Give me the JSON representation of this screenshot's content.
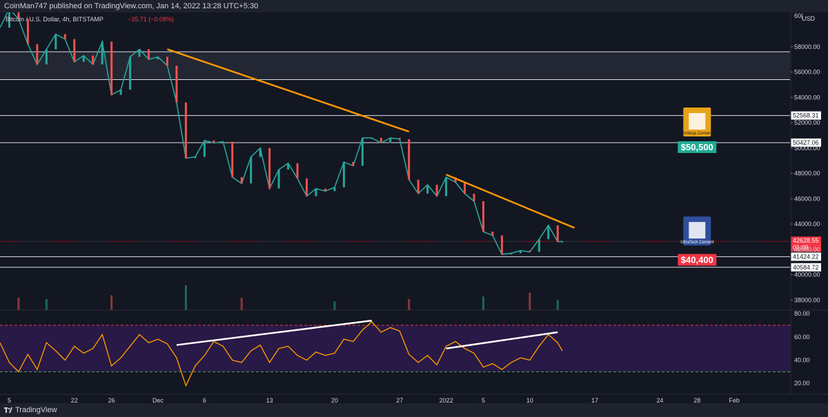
{
  "publisher_line": "CoinMan747 published on TradingView.com, Jan 14, 2022 13:28 UTC+5:30",
  "branding": "TradingView",
  "chart_data": {
    "type": "line",
    "symbol_legend": {
      "name": "Bitcoin / U.S. Dollar, 4h, BITSTAMP",
      "change": "−35.71 (−0.08%)"
    },
    "price_axis": {
      "unit": "USD",
      "ylim": [
        37200,
        60600
      ],
      "ticks": [
        38000,
        40000,
        42000,
        44000,
        46000,
        48000,
        50000,
        52000,
        54000,
        56000,
        58000
      ],
      "tick_labels": [
        "38000.00",
        "40000.00",
        "42000.00",
        "44000.00",
        "46000.00",
        "48000.00",
        "50000.00",
        "52000.00",
        "54000.00",
        "56000.00",
        "58000.00"
      ],
      "top_label": "60("
    },
    "x_axis": {
      "ticks": [
        "2021-11-15",
        "2021-11-22",
        "2021-11-26",
        "2021-12-01",
        "2021-12-06",
        "2021-12-13",
        "2021-12-20",
        "2021-12-27",
        "2022-01-01",
        "2022-01-05",
        "2022-01-10",
        "2022-01-17",
        "2022-01-24",
        "2022-01-28",
        "2022-02-01"
      ],
      "tick_labels": [
        "5",
        "22",
        "26",
        "Dec",
        "6",
        "13",
        "20",
        "27",
        "2022",
        "5",
        "10",
        "17",
        "24",
        "28",
        "Feb"
      ],
      "xlim": [
        "2021-11-14",
        "2022-02-07"
      ]
    },
    "price_series": [
      {
        "x": "2021-11-14",
        "y": 59500
      },
      {
        "x": "2021-11-15",
        "y": 61000
      },
      {
        "x": "2021-11-16",
        "y": 60200
      },
      {
        "x": "2021-11-17",
        "y": 58200
      },
      {
        "x": "2021-11-18",
        "y": 56600
      },
      {
        "x": "2021-11-19",
        "y": 57800
      },
      {
        "x": "2021-11-20",
        "y": 59000
      },
      {
        "x": "2021-11-21",
        "y": 58600
      },
      {
        "x": "2021-11-22",
        "y": 56800
      },
      {
        "x": "2021-11-23",
        "y": 57300
      },
      {
        "x": "2021-11-24",
        "y": 56600
      },
      {
        "x": "2021-11-25",
        "y": 58400
      },
      {
        "x": "2021-11-26",
        "y": 54200
      },
      {
        "x": "2021-11-27",
        "y": 54600
      },
      {
        "x": "2021-11-28",
        "y": 57200
      },
      {
        "x": "2021-11-29",
        "y": 57800
      },
      {
        "x": "2021-11-30",
        "y": 57000
      },
      {
        "x": "2021-12-01",
        "y": 57200
      },
      {
        "x": "2021-12-02",
        "y": 56500
      },
      {
        "x": "2021-12-03",
        "y": 53600
      },
      {
        "x": "2021-12-04",
        "y": 49200
      },
      {
        "x": "2021-12-05",
        "y": 49300
      },
      {
        "x": "2021-12-06",
        "y": 50600
      },
      {
        "x": "2021-12-07",
        "y": 50400
      },
      {
        "x": "2021-12-08",
        "y": 50500
      },
      {
        "x": "2021-12-09",
        "y": 47700
      },
      {
        "x": "2021-12-10",
        "y": 47200
      },
      {
        "x": "2021-12-11",
        "y": 49300
      },
      {
        "x": "2021-12-12",
        "y": 50000
      },
      {
        "x": "2021-12-13",
        "y": 46800
      },
      {
        "x": "2021-12-14",
        "y": 48300
      },
      {
        "x": "2021-12-15",
        "y": 48800
      },
      {
        "x": "2021-12-16",
        "y": 47600
      },
      {
        "x": "2021-12-17",
        "y": 46200
      },
      {
        "x": "2021-12-18",
        "y": 46800
      },
      {
        "x": "2021-12-19",
        "y": 46600
      },
      {
        "x": "2021-12-20",
        "y": 46900
      },
      {
        "x": "2021-12-21",
        "y": 48900
      },
      {
        "x": "2021-12-22",
        "y": 48600
      },
      {
        "x": "2021-12-23",
        "y": 50800
      },
      {
        "x": "2021-12-24",
        "y": 50800
      },
      {
        "x": "2021-12-25",
        "y": 50400
      },
      {
        "x": "2021-12-26",
        "y": 50800
      },
      {
        "x": "2021-12-27",
        "y": 50700
      },
      {
        "x": "2021-12-28",
        "y": 47500
      },
      {
        "x": "2021-12-29",
        "y": 46400
      },
      {
        "x": "2021-12-30",
        "y": 47100
      },
      {
        "x": "2021-12-31",
        "y": 46200
      },
      {
        "x": "2022-01-01",
        "y": 47700
      },
      {
        "x": "2022-01-02",
        "y": 47300
      },
      {
        "x": "2022-01-03",
        "y": 46400
      },
      {
        "x": "2022-01-04",
        "y": 45800
      },
      {
        "x": "2022-01-05",
        "y": 43400
      },
      {
        "x": "2022-01-06",
        "y": 43100
      },
      {
        "x": "2022-01-07",
        "y": 41600
      },
      {
        "x": "2022-01-08",
        "y": 41700
      },
      {
        "x": "2022-01-09",
        "y": 41900
      },
      {
        "x": "2022-01-10",
        "y": 41800
      },
      {
        "x": "2022-01-11",
        "y": 42800
      },
      {
        "x": "2022-01-12",
        "y": 43900
      },
      {
        "x": "2022-01-13",
        "y": 42600
      },
      {
        "x": "2022-01-13.5",
        "y": 42629
      }
    ],
    "volume_series": [
      {
        "x": "2021-11-16",
        "v": 0.5
      },
      {
        "x": "2021-11-19",
        "v": 0.45
      },
      {
        "x": "2021-11-26",
        "v": 0.6
      },
      {
        "x": "2021-12-04",
        "v": 1.0
      },
      {
        "x": "2021-12-10",
        "v": 0.5
      },
      {
        "x": "2021-12-20",
        "v": 0.35
      },
      {
        "x": "2021-12-28",
        "v": 0.45
      },
      {
        "x": "2022-01-05",
        "v": 0.55
      },
      {
        "x": "2022-01-10",
        "v": 0.7
      },
      {
        "x": "2022-01-13",
        "v": 0.4
      }
    ],
    "horizontal_levels": [
      {
        "y": 57600,
        "label": ""
      },
      {
        "y": 55400,
        "label": ""
      },
      {
        "y": 52568.31,
        "label": "52568.31"
      },
      {
        "y": 50427.06,
        "label": "50427.06"
      },
      {
        "y": 41424.22,
        "label": "41424.22"
      },
      {
        "y": 40584.72,
        "label": "40584.72"
      }
    ],
    "current_price": {
      "y": 42628.55,
      "label": "42628.55",
      "countdown": "01:09",
      "color": "#f23645"
    },
    "trendlines": [
      {
        "from": {
          "x": "2021-12-02",
          "y": 57800
        },
        "to": {
          "x": "2021-12-28",
          "y": 51300
        },
        "color": "#ff9800"
      },
      {
        "from": {
          "x": "2022-01-01",
          "y": 47900
        },
        "to": {
          "x": "2022-01-14.8",
          "y": 43700
        },
        "color": "#ff9800"
      }
    ],
    "annotations": [
      {
        "text": "$50,500",
        "y": 50100,
        "x": "2022-01-28",
        "bg": "#22ab94"
      },
      {
        "text": "$40,400",
        "y": 41200,
        "x": "2022-01-28",
        "bg": "#f23645"
      }
    ],
    "logos": [
      {
        "name": "Ambuja Cement",
        "y": 52000,
        "x": "2022-01-28"
      },
      {
        "name": "UltraTech Cement",
        "y": 43400,
        "x": "2022-01-28"
      }
    ],
    "rsi": {
      "ylim": [
        13,
        83
      ],
      "ticks": [
        20,
        40,
        60,
        80
      ],
      "tick_labels": [
        "20.00",
        "40.00",
        "60.00",
        "80.00"
      ],
      "overbought": 70,
      "oversold": 30,
      "series": [
        {
          "x": "2021-11-14",
          "y": 55
        },
        {
          "x": "2021-11-15",
          "y": 38
        },
        {
          "x": "2021-11-16",
          "y": 30
        },
        {
          "x": "2021-11-17",
          "y": 45
        },
        {
          "x": "2021-11-18",
          "y": 32
        },
        {
          "x": "2021-11-19",
          "y": 55
        },
        {
          "x": "2021-11-20",
          "y": 48
        },
        {
          "x": "2021-11-21",
          "y": 40
        },
        {
          "x": "2021-11-22",
          "y": 52
        },
        {
          "x": "2021-11-23",
          "y": 46
        },
        {
          "x": "2021-11-24",
          "y": 50
        },
        {
          "x": "2021-11-25",
          "y": 62
        },
        {
          "x": "2021-11-26",
          "y": 35
        },
        {
          "x": "2021-11-27",
          "y": 42
        },
        {
          "x": "2021-11-28",
          "y": 52
        },
        {
          "x": "2021-11-29",
          "y": 62
        },
        {
          "x": "2021-11-30",
          "y": 55
        },
        {
          "x": "2021-12-01",
          "y": 58
        },
        {
          "x": "2021-12-02",
          "y": 54
        },
        {
          "x": "2021-12-03",
          "y": 42
        },
        {
          "x": "2021-12-04",
          "y": 18
        },
        {
          "x": "2021-12-05",
          "y": 35
        },
        {
          "x": "2021-12-06",
          "y": 44
        },
        {
          "x": "2021-12-07",
          "y": 56
        },
        {
          "x": "2021-12-08",
          "y": 52
        },
        {
          "x": "2021-12-09",
          "y": 40
        },
        {
          "x": "2021-12-10",
          "y": 38
        },
        {
          "x": "2021-12-11",
          "y": 48
        },
        {
          "x": "2021-12-12",
          "y": 53
        },
        {
          "x": "2021-12-13",
          "y": 38
        },
        {
          "x": "2021-12-14",
          "y": 50
        },
        {
          "x": "2021-12-15",
          "y": 52
        },
        {
          "x": "2021-12-16",
          "y": 44
        },
        {
          "x": "2021-12-17",
          "y": 40
        },
        {
          "x": "2021-12-18",
          "y": 47
        },
        {
          "x": "2021-12-19",
          "y": 44
        },
        {
          "x": "2021-12-20",
          "y": 46
        },
        {
          "x": "2021-12-21",
          "y": 58
        },
        {
          "x": "2021-12-22",
          "y": 56
        },
        {
          "x": "2021-12-23",
          "y": 66
        },
        {
          "x": "2021-12-24",
          "y": 73
        },
        {
          "x": "2021-12-25",
          "y": 64
        },
        {
          "x": "2021-12-26",
          "y": 68
        },
        {
          "x": "2021-12-27",
          "y": 65
        },
        {
          "x": "2021-12-28",
          "y": 45
        },
        {
          "x": "2021-12-29",
          "y": 38
        },
        {
          "x": "2021-12-30",
          "y": 44
        },
        {
          "x": "2021-12-31",
          "y": 36
        },
        {
          "x": "2022-01-01",
          "y": 52
        },
        {
          "x": "2022-01-02",
          "y": 56
        },
        {
          "x": "2022-01-03",
          "y": 50
        },
        {
          "x": "2022-01-04",
          "y": 46
        },
        {
          "x": "2022-01-05",
          "y": 34
        },
        {
          "x": "2022-01-06",
          "y": 37
        },
        {
          "x": "2022-01-07",
          "y": 32
        },
        {
          "x": "2022-01-08",
          "y": 38
        },
        {
          "x": "2022-01-09",
          "y": 42
        },
        {
          "x": "2022-01-10",
          "y": 40
        },
        {
          "x": "2022-01-11",
          "y": 52
        },
        {
          "x": "2022-01-12",
          "y": 62
        },
        {
          "x": "2022-01-13",
          "y": 55
        },
        {
          "x": "2022-01-13.5",
          "y": 48
        }
      ],
      "trendlines": [
        {
          "from": {
            "x": "2021-12-03",
            "y": 53
          },
          "to": {
            "x": "2021-12-24",
            "y": 74
          },
          "color": "#ffffff"
        },
        {
          "from": {
            "x": "2022-01-01",
            "y": 50
          },
          "to": {
            "x": "2022-01-13",
            "y": 64
          },
          "color": "#ffffff"
        }
      ]
    }
  }
}
